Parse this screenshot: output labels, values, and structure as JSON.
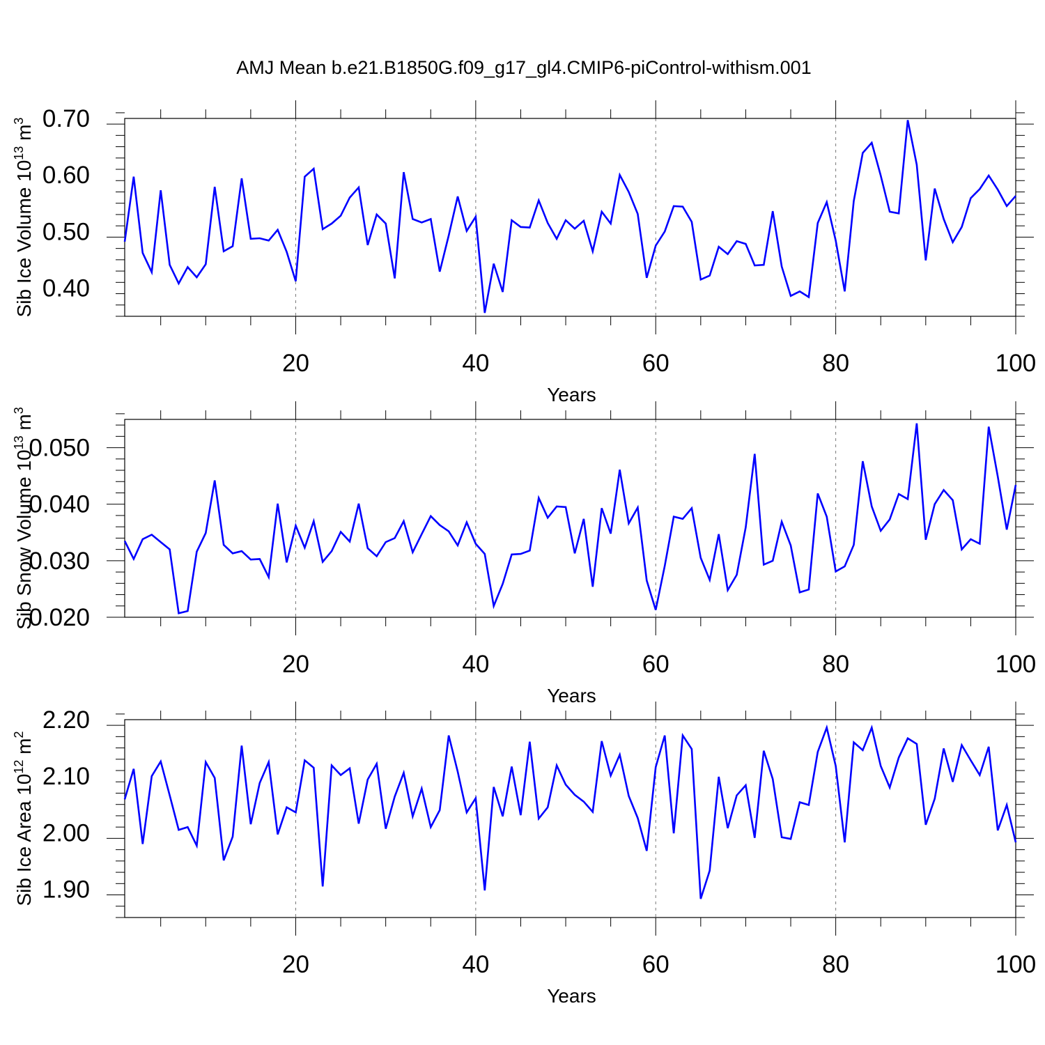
{
  "title": "AMJ Mean b.e21.B1850G.f09_g17_gl4.CMIP6-piControl-withism.001",
  "line_color": "#0000ff",
  "chart_data": [
    {
      "type": "line",
      "xlabel": "Years",
      "ylabel": "Sib Ice Volume 10",
      "ylabel_sup": "13",
      "ylabel_unit": " m",
      "ylabel_unit_sup": "3",
      "xlim": [
        1,
        100
      ],
      "ylim": [
        0.35,
        0.7
      ],
      "xticks": [
        20,
        40,
        60,
        80,
        100
      ],
      "yticks": [
        0.4,
        0.5,
        0.6,
        0.7
      ],
      "ytick_labels": [
        "0.40",
        "0.50",
        "0.60",
        "0.70"
      ],
      "ygrid_minor_step": 0.02,
      "vertical_dashed_gridlines_at": [
        20,
        40,
        60,
        80
      ],
      "series": [
        {
          "values": [
            0.482,
            0.597,
            0.462,
            0.428,
            0.573,
            0.441,
            0.408,
            0.437,
            0.419,
            0.442,
            0.579,
            0.465,
            0.474,
            0.594,
            0.487,
            0.488,
            0.484,
            0.503,
            0.464,
            0.412,
            0.597,
            0.611,
            0.504,
            0.514,
            0.528,
            0.56,
            0.578,
            0.476,
            0.53,
            0.514,
            0.417,
            0.605,
            0.522,
            0.516,
            0.522,
            0.429,
            0.493,
            0.562,
            0.501,
            0.526,
            0.356,
            0.443,
            0.393,
            0.52,
            0.508,
            0.507,
            0.555,
            0.515,
            0.487,
            0.52,
            0.505,
            0.519,
            0.465,
            0.535,
            0.514,
            0.6,
            0.57,
            0.531,
            0.418,
            0.475,
            0.5,
            0.545,
            0.544,
            0.517,
            0.415,
            0.422,
            0.473,
            0.46,
            0.483,
            0.478,
            0.44,
            0.441,
            0.536,
            0.438,
            0.386,
            0.394,
            0.384,
            0.515,
            0.552,
            0.484,
            0.394,
            0.554,
            0.639,
            0.657,
            0.599,
            0.535,
            0.532,
            0.697,
            0.618,
            0.449,
            0.576,
            0.522,
            0.481,
            0.508,
            0.559,
            0.575,
            0.599,
            0.574,
            0.545,
            0.563
          ]
        }
      ]
    },
    {
      "type": "line",
      "xlabel": "Years",
      "ylabel": "Sib Snow Volume 10",
      "ylabel_sup": "13",
      "ylabel_unit": " m",
      "ylabel_unit_sup": "3",
      "xlim": [
        1,
        100
      ],
      "ylim": [
        0.02,
        0.055
      ],
      "xticks": [
        20,
        40,
        60,
        80,
        100
      ],
      "yticks": [
        0.02,
        0.03,
        0.04,
        0.05
      ],
      "ytick_labels": [
        "0.020",
        "0.030",
        "0.040",
        "0.050"
      ],
      "ygrid_minor_step": 0.002,
      "vertical_dashed_gridlines_at": [
        20,
        40,
        60,
        80
      ],
      "series": [
        {
          "values": [
            0.0335,
            0.0303,
            0.0338,
            0.0346,
            0.0333,
            0.032,
            0.0207,
            0.0211,
            0.0316,
            0.0349,
            0.0442,
            0.0328,
            0.0313,
            0.0317,
            0.0302,
            0.0303,
            0.0271,
            0.0401,
            0.0297,
            0.0362,
            0.0323,
            0.037,
            0.0298,
            0.0317,
            0.0351,
            0.0334,
            0.0401,
            0.0322,
            0.0308,
            0.0333,
            0.034,
            0.037,
            0.0315,
            0.0347,
            0.0379,
            0.0363,
            0.0352,
            0.0327,
            0.0368,
            0.033,
            0.0312,
            0.022,
            0.0259,
            0.0311,
            0.0312,
            0.0318,
            0.0411,
            0.0376,
            0.0396,
            0.0395,
            0.0313,
            0.0374,
            0.0254,
            0.0393,
            0.0348,
            0.0461,
            0.0366,
            0.0394,
            0.0265,
            0.0213,
            0.0291,
            0.0378,
            0.0374,
            0.0393,
            0.0305,
            0.0266,
            0.0347,
            0.0248,
            0.0275,
            0.0359,
            0.0489,
            0.0293,
            0.03,
            0.0369,
            0.0327,
            0.0244,
            0.0249,
            0.0419,
            0.0378,
            0.0281,
            0.029,
            0.0328,
            0.0476,
            0.0396,
            0.0353,
            0.0373,
            0.0418,
            0.0409,
            0.0543,
            0.0337,
            0.04,
            0.0425,
            0.0407,
            0.032,
            0.0338,
            0.033,
            0.0537,
            0.0449,
            0.0355,
            0.0434
          ]
        }
      ]
    },
    {
      "type": "line",
      "xlabel": "Years",
      "ylabel": "Sib Ice Area 10",
      "ylabel_sup": "12",
      "ylabel_unit": " m",
      "ylabel_unit_sup": "2",
      "xlim": [
        1,
        100
      ],
      "ylim": [
        1.85,
        2.2
      ],
      "xticks": [
        20,
        40,
        60,
        80,
        100
      ],
      "yticks": [
        1.9,
        2.0,
        2.1,
        2.2
      ],
      "ytick_labels": [
        "1.90",
        "2.00",
        "2.10",
        "2.20"
      ],
      "ygrid_minor_step": 0.02,
      "vertical_dashed_gridlines_at": [
        20,
        40,
        60,
        80
      ],
      "series": [
        {
          "values": [
            2.059,
            2.113,
            1.98,
            2.1,
            2.126,
            2.066,
            2.005,
            2.01,
            1.977,
            2.125,
            2.097,
            1.951,
            1.993,
            2.154,
            2.015,
            2.088,
            2.125,
            1.997,
            2.045,
            2.036,
            2.128,
            2.115,
            1.905,
            2.119,
            2.102,
            2.114,
            2.016,
            2.094,
            2.122,
            2.007,
            2.064,
            2.106,
            2.029,
            2.078,
            2.01,
            2.04,
            2.172,
            2.108,
            2.036,
            2.061,
            1.898,
            2.081,
            2.029,
            2.117,
            2.031,
            2.161,
            2.025,
            2.045,
            2.119,
            2.085,
            2.067,
            2.055,
            2.037,
            2.162,
            2.101,
            2.138,
            2.065,
            2.026,
            1.968,
            2.116,
            2.172,
            1.999,
            2.172,
            2.148,
            1.883,
            1.933,
            2.099,
            2.008,
            2.066,
            2.084,
            1.991,
            2.145,
            2.095,
            1.992,
            1.989,
            2.054,
            2.049,
            2.143,
            2.186,
            2.118,
            1.983,
            2.16,
            2.146,
            2.186,
            2.118,
            2.08,
            2.133,
            2.167,
            2.157,
            2.014,
            2.06,
            2.149,
            2.09,
            2.155,
            2.128,
            2.102,
            2.152,
            2.004,
            2.049,
            1.983
          ]
        }
      ]
    }
  ]
}
